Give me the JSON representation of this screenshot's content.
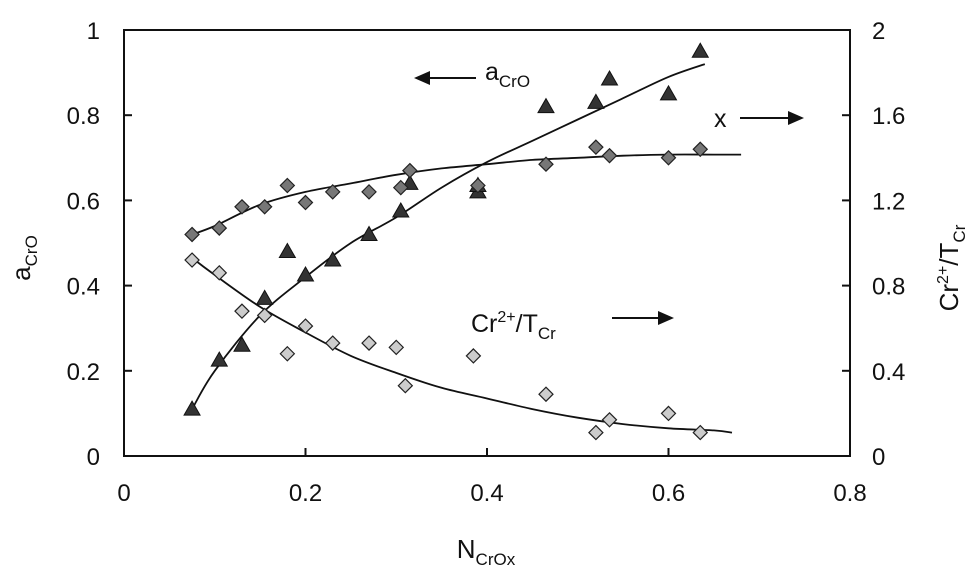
{
  "chart_data": {
    "type": "scatter",
    "xlabel": "N",
    "xlabel_sub": "CrOx",
    "ylabel_left": "a",
    "ylabel_left_sub": "CrO",
    "ylabel_right_parts": [
      "Cr",
      "2+",
      "/T",
      "Cr"
    ],
    "xlim": [
      0,
      0.8
    ],
    "ylim_left": [
      0,
      1
    ],
    "ylim_right": [
      0,
      2
    ],
    "xticks": [
      "0",
      "0.2",
      "0.4",
      "0.6",
      "0.8"
    ],
    "yticks_left": [
      "0",
      "0.2",
      "0.4",
      "0.6",
      "0.8",
      "1"
    ],
    "yticks_right": [
      "0",
      "0.4",
      "0.8",
      "1.2",
      "1.6",
      "2"
    ],
    "grid": false,
    "annotations": {
      "acro": {
        "base": "a",
        "sub": "CrO",
        "arrow": "left"
      },
      "x": {
        "text": "x",
        "arrow": "right"
      },
      "cr": {
        "parts": [
          "Cr",
          "2+",
          "/T",
          "Cr"
        ],
        "arrow": "right"
      }
    },
    "series": [
      {
        "marker": "filled-triangle",
        "color": "#333333",
        "axis": "left",
        "x": [
          0.075,
          0.105,
          0.13,
          0.155,
          0.18,
          0.2,
          0.23,
          0.27,
          0.305,
          0.315,
          0.39,
          0.39,
          0.465,
          0.52,
          0.535,
          0.6,
          0.635
        ],
        "y": [
          0.11,
          0.225,
          0.26,
          0.37,
          0.48,
          0.425,
          0.46,
          0.52,
          0.575,
          0.64,
          0.62,
          0.635,
          0.82,
          0.83,
          0.885,
          0.85,
          0.95
        ],
        "fit": {
          "x": [
            0.075,
            0.1,
            0.15,
            0.2,
            0.25,
            0.3,
            0.35,
            0.4,
            0.45,
            0.5,
            0.55,
            0.6,
            0.64
          ],
          "y": [
            0.11,
            0.2,
            0.33,
            0.42,
            0.5,
            0.56,
            0.63,
            0.69,
            0.74,
            0.79,
            0.84,
            0.89,
            0.92
          ]
        }
      },
      {
        "marker": "filled-diamond",
        "color": "#777777",
        "axis": "right",
        "x": [
          0.075,
          0.105,
          0.13,
          0.155,
          0.18,
          0.2,
          0.23,
          0.27,
          0.305,
          0.315,
          0.39,
          0.465,
          0.52,
          0.535,
          0.6,
          0.635
        ],
        "y": [
          1.04,
          1.07,
          1.17,
          1.17,
          1.27,
          1.19,
          1.24,
          1.24,
          1.26,
          1.34,
          1.27,
          1.37,
          1.45,
          1.41,
          1.4,
          1.44
        ],
        "fit": {
          "x": [
            0.075,
            0.1,
            0.15,
            0.2,
            0.25,
            0.3,
            0.35,
            0.4,
            0.45,
            0.5,
            0.55,
            0.6,
            0.65,
            0.68
          ],
          "y": [
            1.04,
            1.08,
            1.18,
            1.24,
            1.28,
            1.32,
            1.35,
            1.37,
            1.39,
            1.4,
            1.41,
            1.415,
            1.415,
            1.415
          ]
        }
      },
      {
        "marker": "open-diamond",
        "color": "#cccccc",
        "axis": "right",
        "x": [
          0.075,
          0.105,
          0.13,
          0.155,
          0.18,
          0.2,
          0.23,
          0.27,
          0.3,
          0.31,
          0.385,
          0.465,
          0.52,
          0.535,
          0.6,
          0.635
        ],
        "y": [
          0.92,
          0.86,
          0.68,
          0.66,
          0.48,
          0.61,
          0.53,
          0.53,
          0.51,
          0.33,
          0.47,
          0.29,
          0.11,
          0.17,
          0.2,
          0.11
        ],
        "fit": {
          "x": [
            0.075,
            0.1,
            0.15,
            0.2,
            0.25,
            0.3,
            0.35,
            0.4,
            0.45,
            0.5,
            0.55,
            0.6,
            0.65,
            0.67
          ],
          "y": [
            0.93,
            0.85,
            0.7,
            0.58,
            0.47,
            0.39,
            0.32,
            0.27,
            0.22,
            0.18,
            0.15,
            0.13,
            0.12,
            0.11
          ]
        }
      }
    ]
  }
}
